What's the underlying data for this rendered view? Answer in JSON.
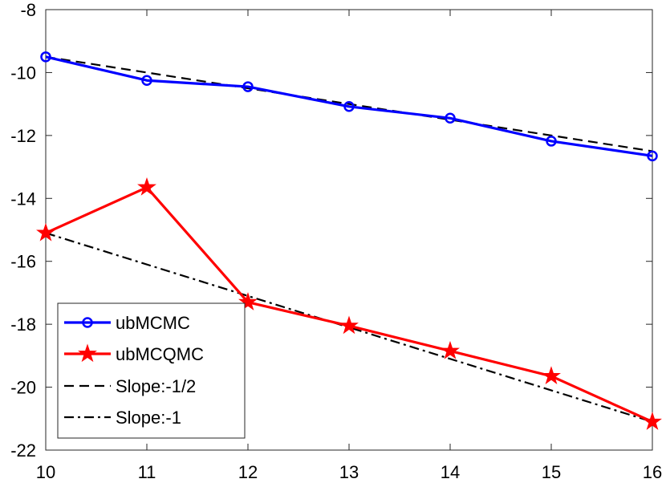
{
  "chart_data": {
    "type": "line",
    "title": "",
    "xlabel": "",
    "ylabel": "",
    "xlim": [
      10,
      16
    ],
    "ylim": [
      -22,
      -8
    ],
    "xticks": [
      10,
      11,
      12,
      13,
      14,
      15,
      16
    ],
    "yticks": [
      -8,
      -10,
      -12,
      -14,
      -16,
      -18,
      -20,
      -22
    ],
    "grid": false,
    "legend_position": "bottom-left",
    "series": [
      {
        "name": "ubMCMC",
        "color": "#0000ff",
        "line_style": "solid",
        "marker": "circle",
        "x": [
          10,
          11,
          12,
          13,
          14,
          15,
          16
        ],
        "y": [
          -9.5,
          -10.25,
          -10.45,
          -11.08,
          -11.45,
          -12.18,
          -12.65
        ]
      },
      {
        "name": "ubMCQMC",
        "color": "#ff0000",
        "line_style": "solid",
        "marker": "star",
        "x": [
          10,
          11,
          12,
          13,
          14,
          15,
          16
        ],
        "y": [
          -15.1,
          -13.65,
          -17.3,
          -18.05,
          -18.85,
          -19.65,
          -21.1
        ]
      },
      {
        "name": "Slope:-1/2",
        "color": "#000000",
        "line_style": "dashed",
        "marker": "none",
        "x": [
          10,
          16
        ],
        "y": [
          -9.5,
          -12.5
        ]
      },
      {
        "name": "Slope:-1",
        "color": "#000000",
        "line_style": "dashdot",
        "marker": "none",
        "x": [
          10,
          16
        ],
        "y": [
          -15.1,
          -21.1
        ]
      }
    ]
  }
}
